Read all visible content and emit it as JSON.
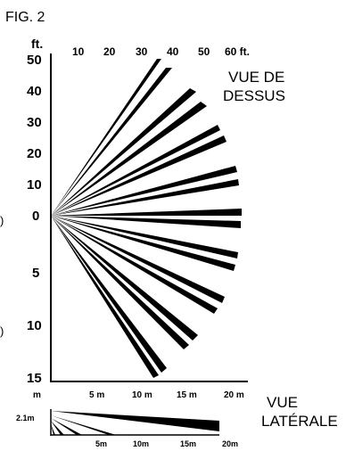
{
  "figure_label": "FIG. 2",
  "top_view": {
    "caption_lines": [
      "VUE DE",
      "DESSUS"
    ],
    "unit_label_y": "ft.",
    "y_ticks_upper": [
      "50",
      "40",
      "30",
      "20",
      "10"
    ],
    "y_tick_zero": "0",
    "y_ticks_lower": [
      "5",
      "10",
      "15"
    ],
    "x_ticks_ft": [
      "10",
      "20",
      "30",
      "40",
      "50",
      "60 ft."
    ],
    "x_unit_m": "m",
    "x_ticks_m": [
      "5 m",
      "10 m",
      "15 m",
      "20 m"
    ],
    "edge_marks": [
      ")",
      ")"
    ]
  },
  "side_view": {
    "caption_lines": [
      "VUE",
      "LATÉRALE"
    ],
    "height_label": "2.1m",
    "x_ticks": [
      "5m",
      "10m",
      "15m",
      "20m"
    ]
  },
  "colors": {
    "ink": "#000000",
    "background": "#ffffff"
  }
}
